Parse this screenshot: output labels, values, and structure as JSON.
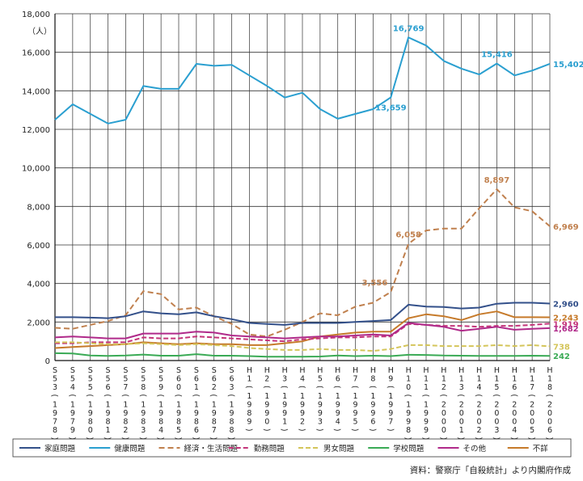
{
  "chart_data": {
    "type": "line",
    "title": "",
    "xlabel": "",
    "ylabel": "（人）",
    "ylim": [
      0,
      18000
    ],
    "yticks": [
      0,
      2000,
      4000,
      6000,
      8000,
      10000,
      12000,
      14000,
      16000,
      18000
    ],
    "ytick_labels": [
      "0",
      "2,000",
      "4,000",
      "6,000",
      "8,000",
      "10,000",
      "12,000",
      "14,000",
      "16,000",
      "18,000"
    ],
    "grid": true,
    "legend_position": "bottom",
    "categories": [
      {
        "era": "S",
        "year": "53",
        "ad": "1978"
      },
      {
        "era": "S",
        "year": "54",
        "ad": "1979"
      },
      {
        "era": "S",
        "year": "55",
        "ad": "1980"
      },
      {
        "era": "S",
        "year": "56",
        "ad": "1981"
      },
      {
        "era": "S",
        "year": "57",
        "ad": "1982"
      },
      {
        "era": "S",
        "year": "58",
        "ad": "1983"
      },
      {
        "era": "S",
        "year": "59",
        "ad": "1984"
      },
      {
        "era": "S",
        "year": "60",
        "ad": "1985"
      },
      {
        "era": "S",
        "year": "61",
        "ad": "1986"
      },
      {
        "era": "S",
        "year": "62",
        "ad": "1987"
      },
      {
        "era": "S",
        "year": "63",
        "ad": "1988"
      },
      {
        "era": "H",
        "year": "1",
        "ad": "1989"
      },
      {
        "era": "H",
        "year": "2",
        "ad": "1990"
      },
      {
        "era": "H",
        "year": "3",
        "ad": "1991"
      },
      {
        "era": "H",
        "year": "4",
        "ad": "1992"
      },
      {
        "era": "H",
        "year": "5",
        "ad": "1993"
      },
      {
        "era": "H",
        "year": "6",
        "ad": "1994"
      },
      {
        "era": "H",
        "year": "7",
        "ad": "1995"
      },
      {
        "era": "H",
        "year": "8",
        "ad": "1996"
      },
      {
        "era": "H",
        "year": "9",
        "ad": "1997"
      },
      {
        "era": "H",
        "year": "10",
        "ad": "1998"
      },
      {
        "era": "H",
        "year": "11",
        "ad": "1999"
      },
      {
        "era": "H",
        "year": "12",
        "ad": "2000"
      },
      {
        "era": "H",
        "year": "13",
        "ad": "2001"
      },
      {
        "era": "H",
        "year": "14",
        "ad": "2002"
      },
      {
        "era": "H",
        "year": "15",
        "ad": "2003"
      },
      {
        "era": "H",
        "year": "16",
        "ad": "2004"
      },
      {
        "era": "H",
        "year": "17",
        "ad": "2005"
      },
      {
        "era": "H",
        "year": "18",
        "ad": "2006"
      }
    ],
    "series": [
      {
        "key": "health",
        "name": "健康問題",
        "color": "#2a9fd0",
        "dash": "",
        "width": 2,
        "values": [
          12500,
          13300,
          12800,
          12300,
          12500,
          14250,
          14100,
          14100,
          15400,
          15300,
          15350,
          14800,
          14250,
          13650,
          13900,
          13050,
          12550,
          12800,
          13050,
          13659,
          16769,
          16350,
          15550,
          15150,
          14850,
          15416,
          14800,
          15050,
          15402
        ],
        "labels": [
          {
            "i": 19,
            "text": "13,659",
            "pos": "below"
          },
          {
            "i": 20,
            "text": "16,769",
            "pos": "above"
          },
          {
            "i": 25,
            "text": "15,416",
            "pos": "above"
          },
          {
            "i": 28,
            "text": "15,402",
            "pos": "right"
          }
        ]
      },
      {
        "key": "economy",
        "name": "経済・生活問題",
        "color": "#c0804e",
        "dash": "7,4",
        "width": 2,
        "values": [
          1700,
          1650,
          1850,
          2050,
          2350,
          3600,
          3450,
          2650,
          2750,
          2300,
          1900,
          1350,
          1250,
          1600,
          2000,
          2450,
          2350,
          2800,
          3000,
          3556,
          6058,
          6750,
          6850,
          6850,
          7900,
          8897,
          7950,
          7750,
          6969
        ],
        "labels": [
          {
            "i": 19,
            "text": "3,556",
            "pos": "left"
          },
          {
            "i": 20,
            "text": "6,058",
            "pos": "above"
          },
          {
            "i": 25,
            "text": "8,897",
            "pos": "above"
          },
          {
            "i": 28,
            "text": "6,969",
            "pos": "right"
          }
        ]
      },
      {
        "key": "family",
        "name": "家庭問題",
        "color": "#33508a",
        "dash": "",
        "width": 2,
        "values": [
          2250,
          2250,
          2230,
          2200,
          2300,
          2550,
          2450,
          2400,
          2500,
          2300,
          2150,
          1950,
          1900,
          1850,
          1950,
          1950,
          1950,
          2000,
          2050,
          2100,
          2900,
          2800,
          2780,
          2700,
          2750,
          2950,
          3000,
          3000,
          2960
        ],
        "labels": [
          {
            "i": 28,
            "text": "2,960",
            "pos": "right"
          }
        ]
      },
      {
        "key": "unknown",
        "name": "不詳",
        "color": "#c67a2a",
        "dash": "",
        "width": 2,
        "values": [
          650,
          700,
          750,
          800,
          850,
          950,
          900,
          850,
          900,
          850,
          850,
          800,
          800,
          900,
          1000,
          1250,
          1350,
          1450,
          1500,
          1500,
          2200,
          2400,
          2300,
          2100,
          2400,
          2550,
          2250,
          2250,
          2243
        ],
        "labels": [
          {
            "i": 28,
            "text": "2,243",
            "pos": "right"
          }
        ]
      },
      {
        "key": "work",
        "name": "勤務問題",
        "color": "#c4357a",
        "dash": "6,3",
        "width": 2,
        "values": [
          900,
          900,
          950,
          950,
          950,
          1200,
          1150,
          1150,
          1250,
          1200,
          1150,
          1100,
          1050,
          1000,
          1100,
          1150,
          1200,
          1200,
          1250,
          1250,
          1900,
          1850,
          1800,
          1800,
          1750,
          1800,
          1800,
          1850,
          1919
        ],
        "labels": [
          {
            "i": 28,
            "text": "1,919",
            "pos": "right"
          }
        ]
      },
      {
        "key": "other",
        "name": "その他",
        "color": "#b02a8a",
        "dash": "",
        "width": 2,
        "values": [
          1200,
          1250,
          1200,
          1150,
          1150,
          1400,
          1400,
          1400,
          1500,
          1450,
          1300,
          1250,
          1200,
          1150,
          1200,
          1250,
          1250,
          1300,
          1350,
          1300,
          1950,
          1850,
          1750,
          1550,
          1650,
          1750,
          1600,
          1650,
          1682
        ],
        "labels": [
          {
            "i": 28,
            "text": "1,682",
            "pos": "right"
          }
        ]
      },
      {
        "key": "romance",
        "name": "男女問題",
        "color": "#d4c55a",
        "dash": "6,3",
        "width": 2,
        "values": [
          950,
          950,
          900,
          850,
          850,
          900,
          850,
          800,
          850,
          800,
          750,
          650,
          600,
          550,
          550,
          600,
          550,
          550,
          500,
          600,
          800,
          800,
          750,
          750,
          750,
          800,
          750,
          800,
          738
        ],
        "labels": [
          {
            "i": 28,
            "text": "738",
            "pos": "right"
          }
        ]
      },
      {
        "key": "school",
        "name": "学校問題",
        "color": "#3aaa55",
        "dash": "",
        "width": 2,
        "values": [
          380,
          370,
          260,
          240,
          260,
          310,
          250,
          250,
          330,
          250,
          250,
          230,
          200,
          200,
          200,
          210,
          260,
          230,
          250,
          230,
          300,
          290,
          260,
          250,
          240,
          240,
          240,
          250,
          242
        ],
        "labels": [
          {
            "i": 28,
            "text": "242",
            "pos": "right"
          }
        ]
      }
    ],
    "legend_order": [
      "family",
      "health",
      "economy",
      "work",
      "romance",
      "school",
      "other",
      "unknown"
    ]
  },
  "source": "資料：警察庁「自殺統計」より内閣府作成"
}
